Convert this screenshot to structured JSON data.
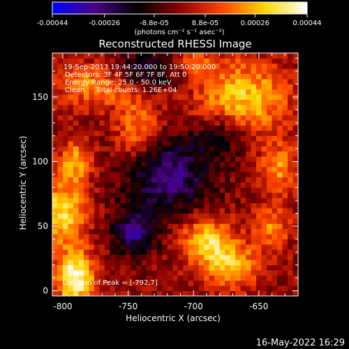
{
  "chart_data": {
    "type": "heatmap",
    "title": "Reconstructed RHESSI Image",
    "xlabel": "Heliocentric X (arcsec)",
    "ylabel": "Heliocentric Y (arcsec)",
    "xlim": [
      -808,
      -620
    ],
    "ylim": [
      -4,
      184
    ],
    "x_ticks": [
      -800,
      -750,
      -700,
      -650
    ],
    "y_ticks": [
      0,
      50,
      100,
      150
    ],
    "x_tick_labels": [
      "-800",
      "-750",
      "-700",
      "-650"
    ],
    "y_tick_labels": [
      "0",
      "50",
      "100",
      "150"
    ],
    "grid": false,
    "colorbar": {
      "ticks": [
        -0.00044,
        -0.00026,
        -8.8e-05,
        8.8e-05,
        0.00026,
        0.00044
      ],
      "tick_labels": [
        "-0.00044",
        "-0.00026",
        "-8.8e-05",
        "8.8e-05",
        "0.00026",
        "0.00044"
      ],
      "range": [
        -0.00044,
        0.00044
      ],
      "units_label": "(photons cm⁻² s⁻¹ asec⁻²)",
      "colors": [
        "#0000ff",
        "#4b0082",
        "#000000",
        "#8b0000",
        "#ff4500",
        "#ffd700",
        "#ffffff"
      ]
    },
    "annotations": [
      "19-Sep-2013 19:44:20.000 to 19:50:20.000",
      "Detectors: 3F 4F 5F 6F 7F 8F, Att 0",
      "Energy Range: 25.0 - 50.0 keV",
      "Clean     Total counts: 1.26E+04"
    ],
    "peak_label": "Location of Peak = [-792,7]",
    "peak": [
      -792,
      7
    ],
    "hot_regions": [
      {
        "x": -790,
        "y": 10,
        "sx": 10,
        "sy": 14,
        "v": 1.1
      },
      {
        "x": -800,
        "y": 60,
        "sx": 12,
        "sy": 18,
        "v": 0.85
      },
      {
        "x": -790,
        "y": 100,
        "sx": 9,
        "sy": 12,
        "v": 0.6
      },
      {
        "x": -775,
        "y": 160,
        "sx": 22,
        "sy": 12,
        "v": 0.55
      },
      {
        "x": -742,
        "y": 125,
        "sx": 12,
        "sy": 18,
        "v": 0.55
      },
      {
        "x": -662,
        "y": 150,
        "sx": 25,
        "sy": 20,
        "v": 0.75
      },
      {
        "x": -690,
        "y": 40,
        "sx": 14,
        "sy": 12,
        "v": 0.75
      },
      {
        "x": -672,
        "y": 20,
        "sx": 16,
        "sy": 12,
        "v": 0.7
      },
      {
        "x": -635,
        "y": 95,
        "sx": 10,
        "sy": 14,
        "v": 0.55
      },
      {
        "x": -640,
        "y": 50,
        "sx": 10,
        "sy": 12,
        "v": 0.5
      },
      {
        "x": -700,
        "y": 175,
        "sx": 10,
        "sy": 6,
        "v": 0.5
      }
    ],
    "cold_regions": [
      {
        "x": -720,
        "y": 90,
        "sx": 22,
        "sy": 20,
        "v": -0.75
      },
      {
        "x": -745,
        "y": 45,
        "sx": 12,
        "sy": 12,
        "v": -0.7
      },
      {
        "x": -735,
        "y": 170,
        "sx": 20,
        "sy": 10,
        "v": -0.55
      },
      {
        "x": -680,
        "y": 120,
        "sx": 14,
        "sy": 12,
        "v": -0.45
      }
    ]
  },
  "footer_timestamp": "16-May-2022 16:29"
}
